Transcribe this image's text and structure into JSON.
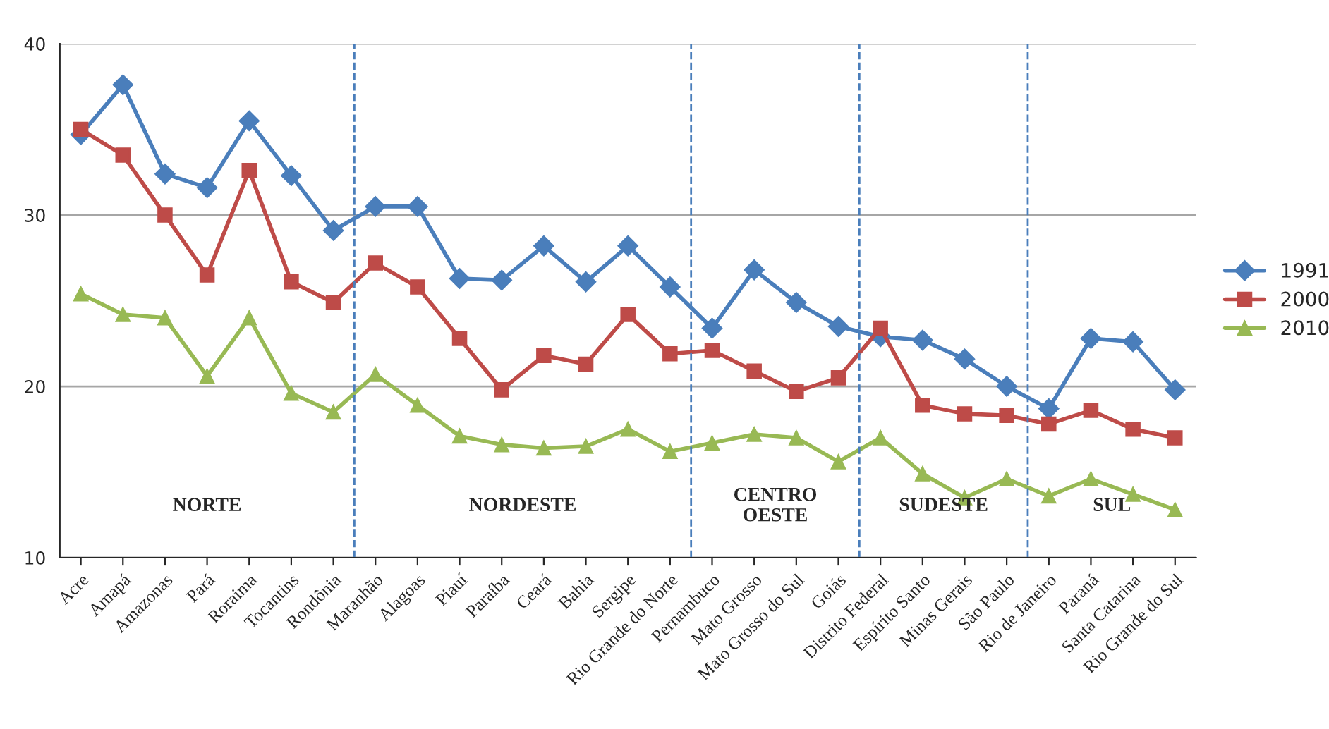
{
  "chart_data": {
    "type": "line",
    "categories": [
      "Acre",
      "Amapá",
      "Amazonas",
      "Pará",
      "Roraima",
      "Tocantins",
      "Rondônia",
      "Maranhão",
      "Alagoas",
      "Piauí",
      "Paraíba",
      "Ceará",
      "Bahia",
      "Sergipe",
      "Rio Grande do Norte",
      "Pernambuco",
      "Mato Grosso",
      "Mato Grosso do Sul",
      "Goiás",
      "Distrito Federal",
      "Espírito Santo",
      "Minas Gerais",
      "São Paulo",
      "Rio de Janeiro",
      "Paraná",
      "Santa Catarina",
      "Rio Grande do Sul"
    ],
    "series": [
      {
        "name": "1991",
        "color": "#4a7ebb",
        "marker": "diamond",
        "values": [
          34.7,
          37.6,
          32.4,
          31.6,
          35.5,
          32.3,
          29.1,
          30.5,
          30.5,
          26.3,
          26.2,
          28.2,
          26.1,
          28.2,
          25.8,
          23.4,
          26.8,
          24.9,
          23.5,
          22.9,
          22.7,
          21.6,
          20.0,
          18.7,
          22.8,
          22.6,
          19.8
        ]
      },
      {
        "name": "2000",
        "color": "#be4b48",
        "marker": "square",
        "values": [
          35.0,
          33.5,
          30.0,
          26.5,
          32.6,
          26.1,
          24.9,
          27.2,
          25.8,
          22.8,
          19.8,
          21.8,
          21.3,
          24.2,
          21.9,
          22.1,
          20.9,
          19.7,
          20.5,
          23.4,
          18.9,
          18.4,
          18.3,
          17.8,
          18.6,
          17.5,
          17.0
        ]
      },
      {
        "name": "2010",
        "color": "#98b954",
        "marker": "triangle",
        "values": [
          25.4,
          24.2,
          24.0,
          20.6,
          24.0,
          19.6,
          18.5,
          20.7,
          18.9,
          17.1,
          16.6,
          16.4,
          16.5,
          17.5,
          16.2,
          16.7,
          17.2,
          17.0,
          15.6,
          17.0,
          14.9,
          13.5,
          14.6,
          13.6,
          14.6,
          13.7,
          12.8
        ]
      }
    ],
    "ylim": [
      10,
      40
    ],
    "yticks": [
      10,
      20,
      30,
      40
    ],
    "grid": "y",
    "legend": "right",
    "line_style": "solid",
    "annotations": [
      "NORTE",
      "NORDESTE",
      "CENTRO\nOESTE",
      "SUDESTE",
      "SUL"
    ]
  }
}
